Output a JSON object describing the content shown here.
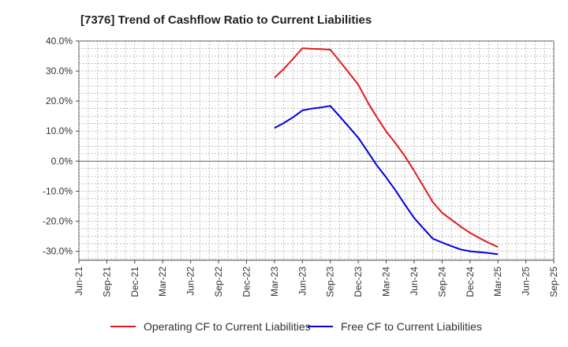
{
  "chart_data": {
    "type": "line",
    "title": "[7376]  Trend of Cashflow Ratio to Current Liabilities",
    "xlabel": "",
    "ylabel": "",
    "x_tick_labels": [
      "Jun-21",
      "Sep-21",
      "Dec-21",
      "Mar-22",
      "Jun-22",
      "Sep-22",
      "Dec-22",
      "Mar-23",
      "Jun-23",
      "Sep-23",
      "Dec-23",
      "Mar-24",
      "Jun-24",
      "Sep-24",
      "Dec-24",
      "Mar-25",
      "Jun-25",
      "Sep-25"
    ],
    "y_tick_labels": [
      "40.0%",
      "30.0%",
      "20.0%",
      "10.0%",
      "0.0%",
      "-10.0%",
      "-20.0%",
      "-30.0%"
    ],
    "ylim": [
      -33,
      40
    ],
    "y_unit": "%",
    "grid": true,
    "legend_position": "bottom",
    "x": [
      "Mar-23",
      "Apr-23",
      "May-23",
      "Jun-23",
      "Jul-23",
      "Aug-23",
      "Sep-23",
      "Oct-23",
      "Nov-23",
      "Dec-23",
      "Jan-24",
      "Feb-24",
      "Mar-24",
      "Apr-24",
      "May-24",
      "Jun-24",
      "Jul-24",
      "Aug-24",
      "Sep-24",
      "Oct-24",
      "Nov-24",
      "Dec-24",
      "Jan-25",
      "Feb-25",
      "Mar-25"
    ],
    "series": [
      {
        "name": "Operating CF to Current Liabilities",
        "color": "#e31a1c",
        "values": [
          27.8,
          30.7,
          34.1,
          37.6,
          37.4,
          37.3,
          37.1,
          33.3,
          29.4,
          25.5,
          19.7,
          14.6,
          9.9,
          6.0,
          1.7,
          -3.2,
          -8.4,
          -13.6,
          -17.2,
          -19.5,
          -21.8,
          -23.9,
          -25.6,
          -27.2,
          -28.6
        ]
      },
      {
        "name": "Free CF to Current Liabilities",
        "color": "#0000dd",
        "values": [
          11.0,
          12.7,
          14.6,
          16.9,
          17.5,
          17.9,
          18.4,
          14.9,
          11.4,
          7.8,
          3.2,
          -1.4,
          -5.4,
          -9.7,
          -14.4,
          -18.9,
          -22.4,
          -25.8,
          -27.1,
          -28.3,
          -29.4,
          -30.0,
          -30.3,
          -30.6,
          -31.0
        ]
      }
    ]
  }
}
